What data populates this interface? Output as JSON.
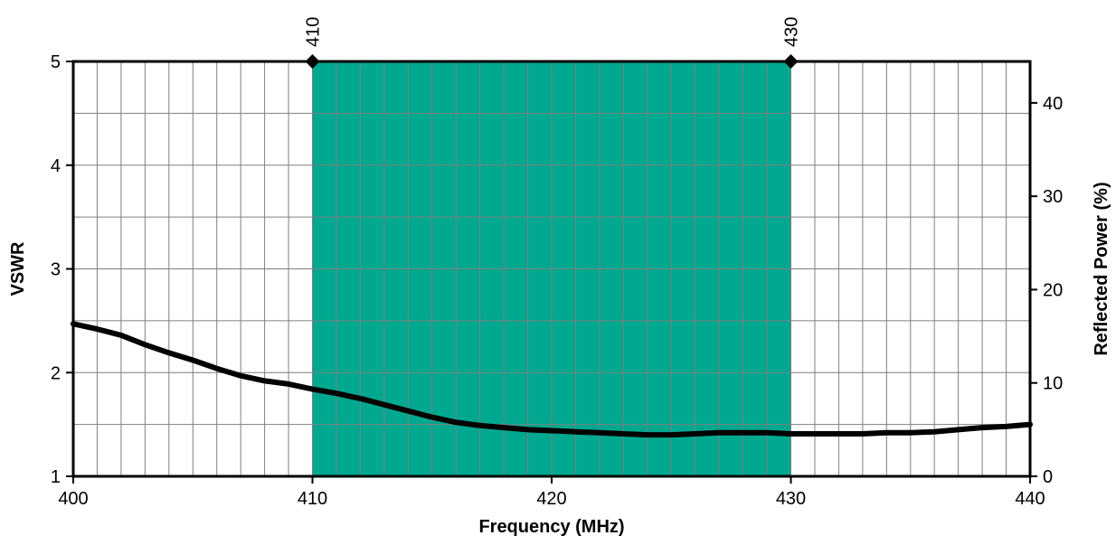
{
  "chart_data": {
    "type": "line",
    "xlabel": "Frequency (MHz)",
    "ylabel": "VSWR",
    "y2label": "Reflected Power (%)",
    "xlim": [
      400,
      440
    ],
    "ylim": [
      1,
      5
    ],
    "y2lim": [
      0,
      44.44
    ],
    "x_ticks": [
      400,
      410,
      420,
      430,
      440
    ],
    "y_ticks": [
      1,
      2,
      3,
      4,
      5
    ],
    "y2_ticks": [
      0,
      10,
      20,
      30,
      40
    ],
    "top_ticks": [
      410,
      430
    ],
    "grid": true,
    "band": {
      "from": 410,
      "to": 430,
      "color": "#00a88f"
    },
    "band_markers": [
      410,
      430
    ],
    "line_color": "#000000",
    "series": [
      {
        "x": [
          400,
          401,
          402,
          403,
          404,
          405,
          406,
          407,
          408,
          409,
          410,
          411,
          412,
          413,
          414,
          415,
          416,
          417,
          418,
          419,
          420,
          421,
          422,
          423,
          424,
          425,
          426,
          427,
          428,
          429,
          430,
          431,
          432,
          433,
          434,
          435,
          436,
          437,
          438,
          439,
          440
        ],
        "values": [
          2.47,
          2.42,
          2.36,
          2.27,
          2.19,
          2.12,
          2.04,
          1.97,
          1.92,
          1.89,
          1.84,
          1.8,
          1.75,
          1.69,
          1.63,
          1.57,
          1.52,
          1.49,
          1.47,
          1.45,
          1.44,
          1.43,
          1.42,
          1.41,
          1.4,
          1.4,
          1.41,
          1.42,
          1.42,
          1.42,
          1.41,
          1.41,
          1.41,
          1.41,
          1.42,
          1.42,
          1.43,
          1.45,
          1.47,
          1.48,
          1.5
        ]
      }
    ]
  }
}
